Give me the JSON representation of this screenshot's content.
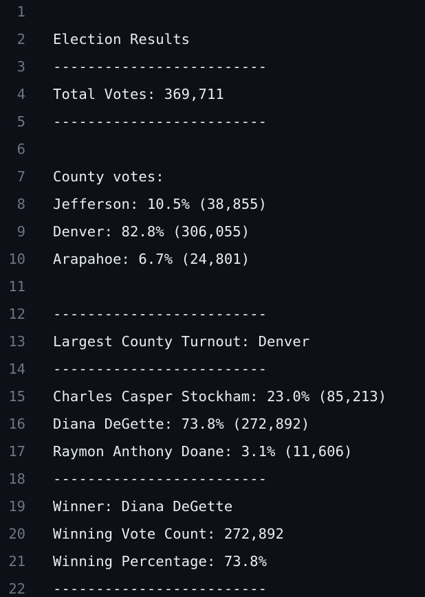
{
  "file": {
    "lines": [
      {
        "number": "1",
        "text": ""
      },
      {
        "number": "2",
        "text": "Election Results"
      },
      {
        "number": "3",
        "text": "-------------------------"
      },
      {
        "number": "4",
        "text": "Total Votes: 369,711"
      },
      {
        "number": "5",
        "text": "-------------------------"
      },
      {
        "number": "6",
        "text": ""
      },
      {
        "number": "7",
        "text": "County votes:"
      },
      {
        "number": "8",
        "text": "Jefferson: 10.5% (38,855)"
      },
      {
        "number": "9",
        "text": "Denver: 82.8% (306,055)"
      },
      {
        "number": "10",
        "text": "Arapahoe: 6.7% (24,801)"
      },
      {
        "number": "11",
        "text": ""
      },
      {
        "number": "12",
        "text": "-------------------------"
      },
      {
        "number": "13",
        "text": "Largest County Turnout: Denver"
      },
      {
        "number": "14",
        "text": "-------------------------"
      },
      {
        "number": "15",
        "text": "Charles Casper Stockham: 23.0% (85,213)"
      },
      {
        "number": "16",
        "text": "Diana DeGette: 73.8% (272,892)"
      },
      {
        "number": "17",
        "text": "Raymon Anthony Doane: 3.1% (11,606)"
      },
      {
        "number": "18",
        "text": "-------------------------"
      },
      {
        "number": "19",
        "text": "Winner: Diana DeGette"
      },
      {
        "number": "20",
        "text": "Winning Vote Count: 272,892"
      },
      {
        "number": "21",
        "text": "Winning Percentage: 73.8%"
      },
      {
        "number": "22",
        "text": "-------------------------"
      }
    ]
  },
  "colors": {
    "background": "#0d1117",
    "line_number": "#6e7681",
    "text": "#e6edf3"
  }
}
